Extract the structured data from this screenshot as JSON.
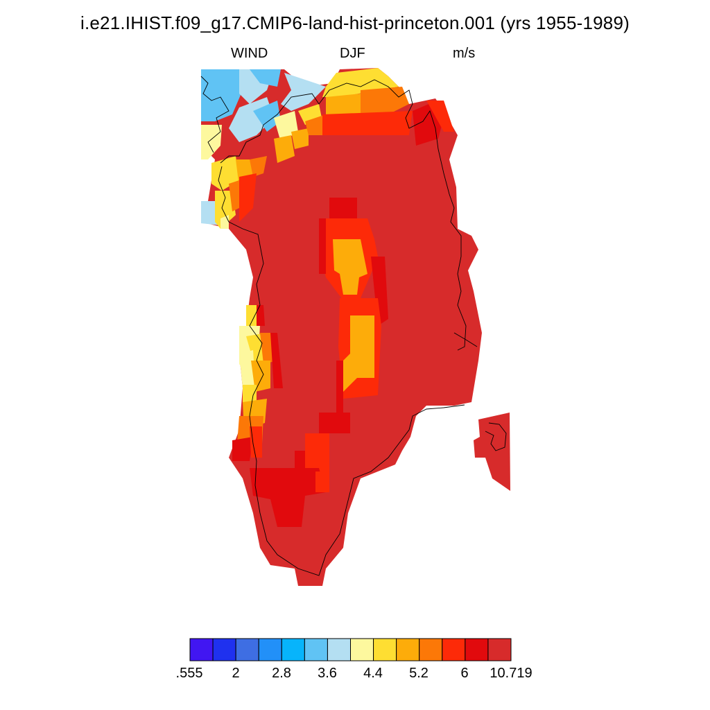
{
  "title": "i.e21.IHIST.f09_g17.CMIP6-land-hist-princeton.001 (yrs 1955-1989)",
  "left_string": "WIND",
  "center_string": "DJF",
  "right_string": "m/s",
  "legend": {
    "colors": [
      "#4116f2",
      "#1f31ef",
      "#3e6ee3",
      "#2290f8",
      "#07b4fb",
      "#60c3f4",
      "#b4dff2",
      "#fdf89e",
      "#fede32",
      "#fdac0a",
      "#fc7807",
      "#fd2a08",
      "#e10a0d",
      "#d72b2b"
    ],
    "labels": [
      ".555",
      "2",
      "2.8",
      "3.6",
      "4.4",
      "5.2",
      "6",
      "10.719"
    ]
  },
  "map_colors": {
    "bg": "#d72b2b",
    "dark": "#e10a0d",
    "red": "#fd2a08",
    "orange": "#fc7807",
    "amber": "#fdac0a",
    "yellow": "#fede32",
    "paleyellow": "#fdf89e",
    "paleblue": "#b4dff2",
    "blue": "#60c3f4"
  }
}
